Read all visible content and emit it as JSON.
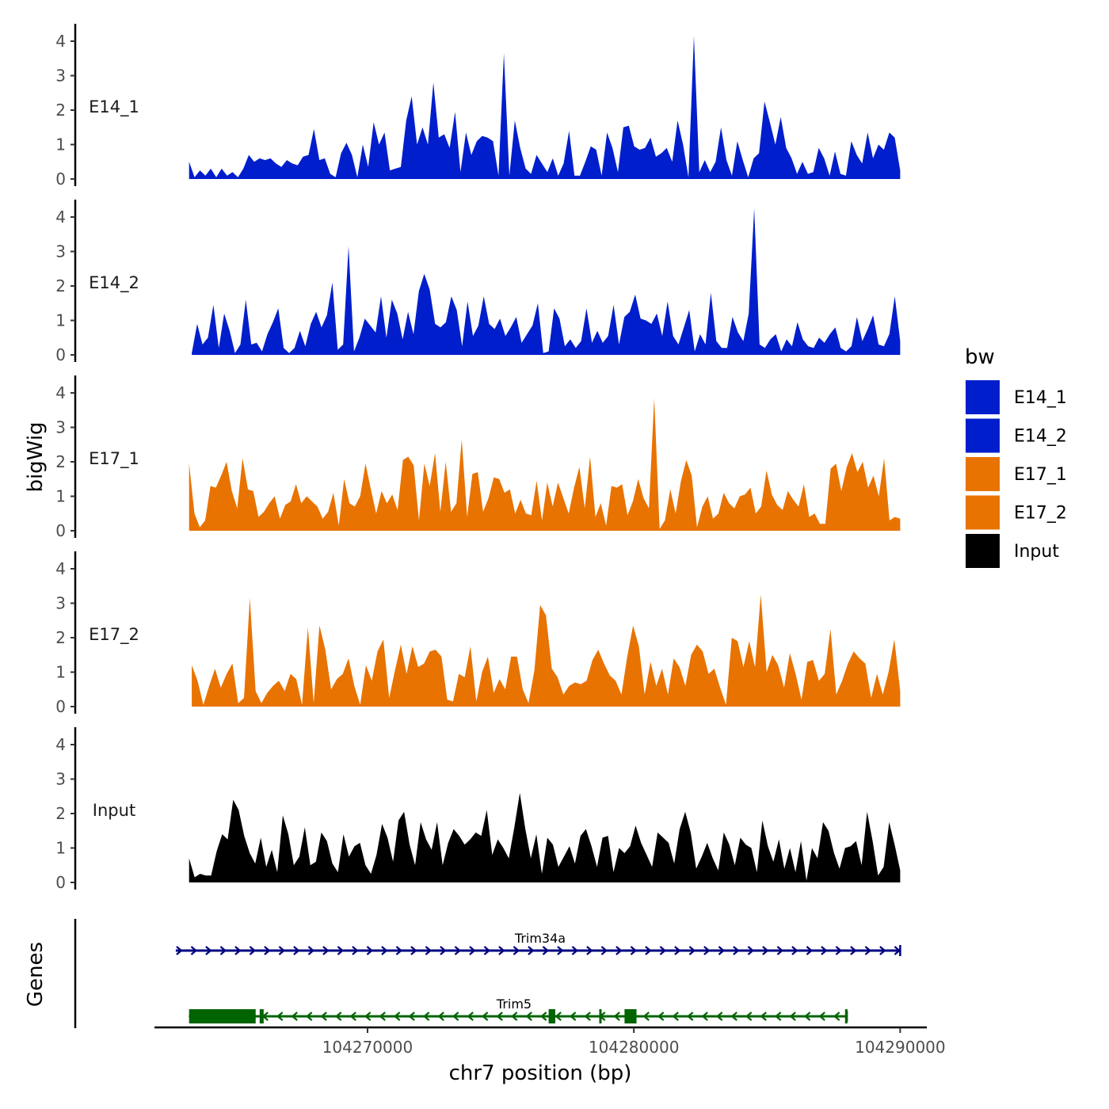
{
  "chart_data": {
    "type": "area",
    "y_axis_title": "bigWig",
    "x_axis_title": "chr7 position (bp)",
    "genes_axis_title": "Genes",
    "xlim": [
      104262000,
      104291000
    ],
    "x_ticks": [
      {
        "value": 104270000,
        "label": "104270000"
      },
      {
        "value": 104280000,
        "label": "104280000"
      },
      {
        "value": 104290000,
        "label": "104290000"
      }
    ],
    "ylim": [
      0,
      4.5
    ],
    "y_ticks": [
      {
        "value": 0,
        "label": "0"
      },
      {
        "value": 1,
        "label": "1"
      },
      {
        "value": 2,
        "label": "2"
      },
      {
        "value": 3,
        "label": "3"
      },
      {
        "value": 4,
        "label": "4"
      }
    ],
    "series": [
      {
        "name": "E14_1",
        "color": "#001ecc",
        "x_start": 104263300,
        "x_end": 104290000,
        "values": [
          0.5,
          0.05,
          0.25,
          0.1,
          0.3,
          0.05,
          0.3,
          0.1,
          0.2,
          0.05,
          0.3,
          0.7,
          0.5,
          0.6,
          0.55,
          0.6,
          0.45,
          0.35,
          0.55,
          0.45,
          0.4,
          0.65,
          0.7,
          1.45,
          0.55,
          0.6,
          0.15,
          0.05,
          0.75,
          1.05,
          0.7,
          0.05,
          1.0,
          0.35,
          1.65,
          1.0,
          1.35,
          0.25,
          0.3,
          0.35,
          1.7,
          2.4,
          1.0,
          1.5,
          1.0,
          2.8,
          1.2,
          1.3,
          0.9,
          1.95,
          0.2,
          1.35,
          0.7,
          1.1,
          1.25,
          1.2,
          1.1,
          0.1,
          3.65,
          0.1,
          1.7,
          0.9,
          0.3,
          0.15,
          0.7,
          0.45,
          0.2,
          0.6,
          0.1,
          0.45,
          1.4,
          0.1,
          0.1,
          0.5,
          0.95,
          0.85,
          0.1,
          1.35,
          0.9,
          0.2,
          1.5,
          1.55,
          0.95,
          0.85,
          0.9,
          1.2,
          0.65,
          0.75,
          0.9,
          0.5,
          1.7,
          1.0,
          0.05,
          4.15,
          0.2,
          0.55,
          0.2,
          0.5,
          1.5,
          0.55,
          0.1,
          1.1,
          0.55,
          0.05,
          0.6,
          0.75,
          2.25,
          1.65,
          1.0,
          1.8,
          0.9,
          0.6,
          0.15,
          0.5,
          0.15,
          0.2,
          0.9,
          0.6,
          0.1,
          0.8,
          0.15,
          0.1,
          1.1,
          0.7,
          0.45,
          1.35,
          0.6,
          1.0,
          0.85,
          1.35,
          1.2,
          0.25
        ]
      },
      {
        "name": "E14_2",
        "color": "#001ecc",
        "x_start": 104263400,
        "x_end": 104290000,
        "values": [
          0.05,
          0.9,
          0.3,
          0.5,
          1.45,
          0.2,
          1.2,
          0.7,
          0.05,
          0.3,
          1.6,
          0.3,
          0.35,
          0.1,
          0.6,
          0.95,
          1.35,
          0.2,
          0.05,
          0.2,
          0.7,
          0.25,
          0.9,
          1.25,
          0.8,
          1.15,
          2.1,
          0.15,
          0.3,
          3.15,
          0.1,
          0.5,
          1.05,
          0.85,
          0.65,
          1.7,
          0.5,
          1.6,
          1.2,
          0.45,
          1.25,
          0.6,
          1.85,
          2.35,
          1.9,
          0.9,
          0.8,
          0.95,
          1.7,
          1.3,
          0.25,
          1.55,
          0.55,
          0.85,
          1.7,
          0.9,
          0.75,
          1.05,
          0.55,
          0.8,
          1.1,
          0.35,
          0.6,
          0.85,
          1.5,
          0.05,
          0.1,
          1.35,
          1.05,
          0.25,
          0.45,
          0.2,
          0.4,
          1.35,
          0.35,
          0.7,
          0.35,
          0.55,
          1.45,
          0.3,
          1.1,
          1.25,
          1.75,
          1.05,
          1.0,
          0.9,
          1.2,
          0.55,
          1.55,
          0.55,
          0.3,
          0.8,
          1.3,
          0.1,
          0.6,
          0.3,
          1.8,
          0.4,
          0.2,
          0.2,
          1.1,
          0.65,
          0.4,
          1.2,
          4.25,
          0.3,
          0.2,
          0.45,
          0.6,
          0.1,
          0.45,
          0.25,
          0.95,
          0.45,
          0.25,
          0.2,
          0.5,
          0.35,
          0.6,
          0.8,
          0.2,
          0.1,
          0.25,
          1.1,
          0.4,
          0.75,
          1.15,
          0.3,
          0.25,
          0.6,
          1.7,
          0.4
        ]
      },
      {
        "name": "E17_1",
        "color": "#e87300",
        "x_start": 104263300,
        "x_end": 104290000,
        "values": [
          1.95,
          0.5,
          0.1,
          0.3,
          1.3,
          1.25,
          1.6,
          2.0,
          1.15,
          0.65,
          2.1,
          1.2,
          1.15,
          0.4,
          0.55,
          0.8,
          1.0,
          0.35,
          0.75,
          0.85,
          1.35,
          0.8,
          1.0,
          0.85,
          0.7,
          0.35,
          0.55,
          1.1,
          0.15,
          1.5,
          0.8,
          0.7,
          1.0,
          1.95,
          1.2,
          0.5,
          1.15,
          0.8,
          1.05,
          0.6,
          2.05,
          2.15,
          1.9,
          0.3,
          1.95,
          1.3,
          2.25,
          0.55,
          2.0,
          0.55,
          0.8,
          2.65,
          0.4,
          1.65,
          1.7,
          0.55,
          0.95,
          1.55,
          1.5,
          1.1,
          1.2,
          0.5,
          0.9,
          0.5,
          0.45,
          1.45,
          0.3,
          1.4,
          0.7,
          1.4,
          0.95,
          0.5,
          1.25,
          1.85,
          0.65,
          2.15,
          0.4,
          0.8,
          0.15,
          1.3,
          1.25,
          1.35,
          0.45,
          0.85,
          1.5,
          0.95,
          0.65,
          3.85,
          0.05,
          0.3,
          1.2,
          0.5,
          1.45,
          2.05,
          1.6,
          0.1,
          0.7,
          1.0,
          0.35,
          0.5,
          1.1,
          0.8,
          0.65,
          1.0,
          1.05,
          1.25,
          0.5,
          0.7,
          1.75,
          1.05,
          0.75,
          0.6,
          1.15,
          0.9,
          0.7,
          1.35,
          0.4,
          0.5,
          0.2,
          0.2,
          1.8,
          1.95,
          1.15,
          1.85,
          2.25,
          1.7,
          2.0,
          1.25,
          1.6,
          1.0,
          2.1,
          0.3,
          0.4,
          0.35
        ]
      },
      {
        "name": "E17_2",
        "color": "#e87300",
        "x_start": 104263400,
        "x_end": 104290000,
        "values": [
          1.2,
          0.75,
          0.05,
          0.6,
          1.1,
          0.55,
          0.95,
          1.25,
          0.1,
          0.25,
          3.15,
          0.45,
          0.1,
          0.4,
          0.6,
          0.75,
          0.45,
          0.95,
          0.8,
          0.05,
          2.3,
          0.1,
          2.35,
          1.65,
          0.5,
          0.8,
          0.95,
          1.4,
          0.6,
          0.05,
          1.2,
          0.75,
          1.6,
          1.95,
          0.25,
          1.05,
          1.8,
          0.95,
          1.75,
          1.15,
          1.25,
          1.6,
          1.65,
          1.45,
          0.2,
          0.15,
          0.95,
          0.85,
          1.75,
          0.15,
          1.0,
          1.45,
          0.4,
          0.8,
          0.5,
          1.45,
          1.45,
          0.5,
          0.1,
          1.05,
          2.95,
          2.65,
          1.1,
          0.85,
          0.35,
          0.6,
          0.7,
          0.65,
          0.75,
          1.35,
          1.65,
          1.25,
          0.9,
          0.75,
          0.35,
          1.45,
          2.35,
          1.75,
          0.35,
          1.3,
          0.6,
          1.1,
          0.35,
          1.4,
          1.15,
          0.6,
          1.5,
          1.8,
          1.6,
          0.95,
          1.1,
          0.55,
          0.05,
          2.0,
          1.9,
          1.15,
          1.9,
          1.15,
          3.25,
          1.0,
          1.5,
          1.2,
          0.55,
          1.55,
          0.95,
          0.2,
          1.3,
          1.35,
          0.75,
          0.95,
          2.25,
          0.35,
          0.75,
          1.25,
          1.6,
          1.4,
          1.25,
          0.25,
          0.95,
          0.35,
          1.0,
          1.95,
          0.45
        ]
      },
      {
        "name": "Input",
        "color": "#000000",
        "x_start": 104263300,
        "x_end": 104290000,
        "values": [
          0.7,
          0.15,
          0.25,
          0.2,
          0.2,
          0.9,
          1.4,
          1.25,
          2.4,
          2.1,
          1.35,
          0.85,
          0.55,
          1.3,
          0.45,
          0.95,
          0.3,
          1.95,
          1.4,
          0.5,
          0.75,
          1.6,
          0.5,
          0.6,
          1.45,
          1.2,
          0.55,
          0.3,
          1.4,
          0.75,
          1.05,
          1.15,
          0.5,
          0.25,
          0.8,
          1.7,
          1.3,
          0.6,
          1.8,
          2.05,
          1.1,
          0.5,
          1.75,
          1.25,
          0.95,
          1.75,
          0.5,
          1.15,
          1.55,
          1.35,
          1.1,
          1.25,
          1.45,
          1.35,
          2.1,
          0.8,
          1.25,
          1.0,
          0.7,
          1.6,
          2.6,
          1.55,
          0.7,
          1.4,
          0.25,
          1.3,
          1.1,
          0.45,
          0.75,
          1.05,
          0.55,
          1.35,
          1.55,
          1.05,
          0.45,
          1.3,
          1.35,
          0.3,
          1.0,
          0.85,
          1.05,
          1.65,
          1.15,
          0.8,
          0.45,
          1.45,
          1.3,
          1.15,
          0.55,
          1.55,
          2.05,
          1.45,
          0.4,
          0.75,
          1.15,
          0.7,
          0.35,
          1.45,
          1.1,
          0.5,
          1.3,
          1.1,
          1.0,
          0.3,
          1.8,
          1.05,
          0.6,
          1.25,
          0.4,
          1.0,
          0.3,
          1.2,
          0.05,
          1.0,
          0.7,
          1.75,
          1.5,
          0.85,
          0.4,
          1.0,
          1.05,
          1.2,
          0.5,
          2.05,
          1.2,
          0.2,
          0.45,
          1.75,
          1.1,
          0.35
        ]
      }
    ],
    "legend": {
      "title": "bw",
      "position": "right",
      "entries": [
        {
          "label": "E14_1",
          "color": "#001ecc"
        },
        {
          "label": "E14_2",
          "color": "#001ecc"
        },
        {
          "label": "E17_1",
          "color": "#e87300"
        },
        {
          "label": "E17_2",
          "color": "#e87300"
        },
        {
          "label": "Input",
          "color": "#000000"
        }
      ]
    },
    "genes": [
      {
        "name": "Trim34a",
        "color": "#000080",
        "strand": "+",
        "start": 104262800,
        "end": 104290000,
        "exons": []
      },
      {
        "name": "Trim5",
        "color": "#006400",
        "strand": "-",
        "start": 104263300,
        "end": 104288000,
        "exons": [
          [
            104263300,
            104265800
          ],
          [
            104265950,
            104266100
          ],
          [
            104276800,
            104277050
          ],
          [
            104278700,
            104278780
          ],
          [
            104279650,
            104280100
          ],
          [
            104287930,
            104288000
          ]
        ]
      }
    ]
  }
}
